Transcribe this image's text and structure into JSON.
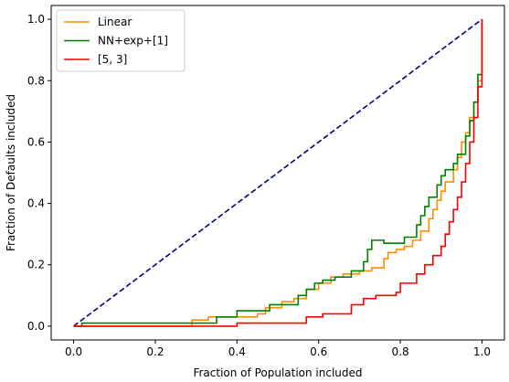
{
  "chart_data": {
    "type": "line",
    "title": "",
    "xlabel": "Fraction of Population included",
    "ylabel": "Fraction of Defaults included",
    "xlim": [
      -0.055,
      1.055
    ],
    "ylim": [
      -0.045,
      1.045
    ],
    "xticks": [
      "0.0",
      "0.2",
      "0.4",
      "0.6",
      "0.8",
      "1.0"
    ],
    "yticks": [
      "0.0",
      "0.2",
      "0.4",
      "0.6",
      "0.8",
      "1.0"
    ],
    "grid": false,
    "legend_position": "upper left",
    "reference_line": {
      "color": "#000080",
      "style": "dashed",
      "x": [
        0,
        1
      ],
      "y": [
        0,
        1
      ]
    },
    "series": [
      {
        "name": "Linear",
        "color": "#ff8c00",
        "step": true,
        "x": [
          0,
          0.29,
          0.33,
          0.45,
          0.47,
          0.51,
          0.54,
          0.57,
          0.6,
          0.63,
          0.66,
          0.7,
          0.73,
          0.76,
          0.77,
          0.79,
          0.81,
          0.83,
          0.85,
          0.87,
          0.88,
          0.89,
          0.9,
          0.91,
          0.93,
          0.94,
          0.95,
          0.96,
          0.97,
          0.98,
          0.99,
          1.0
        ],
        "y": [
          0,
          0.02,
          0.03,
          0.04,
          0.06,
          0.08,
          0.09,
          0.12,
          0.14,
          0.16,
          0.17,
          0.18,
          0.19,
          0.22,
          0.24,
          0.25,
          0.26,
          0.28,
          0.31,
          0.35,
          0.38,
          0.41,
          0.44,
          0.47,
          0.51,
          0.55,
          0.6,
          0.63,
          0.68,
          0.73,
          0.8,
          1.0
        ]
      },
      {
        "name": "NN+exp+[1]",
        "color": "#008000",
        "step": true,
        "x": [
          0,
          0.02,
          0.35,
          0.4,
          0.48,
          0.55,
          0.57,
          0.59,
          0.61,
          0.64,
          0.68,
          0.71,
          0.72,
          0.73,
          0.76,
          0.81,
          0.84,
          0.85,
          0.86,
          0.87,
          0.89,
          0.9,
          0.91,
          0.93,
          0.94,
          0.96,
          0.97,
          0.98,
          0.99,
          1.0
        ],
        "y": [
          0,
          0.01,
          0.03,
          0.05,
          0.07,
          0.1,
          0.12,
          0.14,
          0.15,
          0.16,
          0.18,
          0.21,
          0.25,
          0.28,
          0.27,
          0.29,
          0.33,
          0.36,
          0.39,
          0.42,
          0.46,
          0.49,
          0.51,
          0.53,
          0.56,
          0.62,
          0.67,
          0.73,
          0.82,
          1.0
        ]
      },
      {
        "name": "[5, 3]",
        "color": "#ff0000",
        "step": true,
        "x": [
          0,
          0.4,
          0.57,
          0.61,
          0.68,
          0.71,
          0.74,
          0.79,
          0.8,
          0.84,
          0.86,
          0.88,
          0.9,
          0.91,
          0.92,
          0.93,
          0.94,
          0.95,
          0.96,
          0.97,
          0.98,
          0.99,
          1.0
        ],
        "y": [
          0,
          0.01,
          0.03,
          0.04,
          0.07,
          0.09,
          0.1,
          0.11,
          0.14,
          0.17,
          0.2,
          0.23,
          0.26,
          0.3,
          0.34,
          0.38,
          0.42,
          0.47,
          0.53,
          0.6,
          0.68,
          0.78,
          1.0
        ]
      }
    ]
  }
}
